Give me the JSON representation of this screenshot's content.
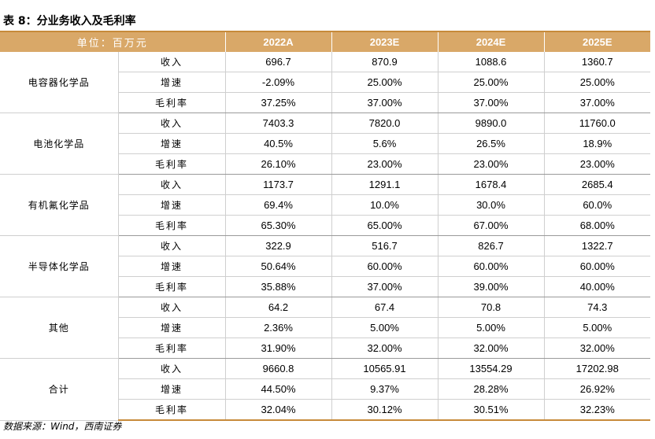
{
  "title": "表 8：分业务收入及毛利率",
  "header": {
    "unit": "单位：百万元",
    "years": [
      "2022A",
      "2023E",
      "2024E",
      "2025E"
    ]
  },
  "segments": [
    {
      "name": "电容器化学品",
      "rows": [
        {
          "metric": "收入",
          "values": [
            "696.7",
            "870.9",
            "1088.6",
            "1360.7"
          ]
        },
        {
          "metric": "增速",
          "values": [
            "-2.09%",
            "25.00%",
            "25.00%",
            "25.00%"
          ]
        },
        {
          "metric": "毛利率",
          "values": [
            "37.25%",
            "37.00%",
            "37.00%",
            "37.00%"
          ]
        }
      ]
    },
    {
      "name": "电池化学品",
      "rows": [
        {
          "metric": "收入",
          "values": [
            "7403.3",
            "7820.0",
            "9890.0",
            "11760.0"
          ]
        },
        {
          "metric": "增速",
          "values": [
            "40.5%",
            "5.6%",
            "26.5%",
            "18.9%"
          ]
        },
        {
          "metric": "毛利率",
          "values": [
            "26.10%",
            "23.00%",
            "23.00%",
            "23.00%"
          ]
        }
      ]
    },
    {
      "name": "有机氟化学品",
      "rows": [
        {
          "metric": "收入",
          "values": [
            "1173.7",
            "1291.1",
            "1678.4",
            "2685.4"
          ]
        },
        {
          "metric": "增速",
          "values": [
            "69.4%",
            "10.0%",
            "30.0%",
            "60.0%"
          ]
        },
        {
          "metric": "毛利率",
          "values": [
            "65.30%",
            "65.00%",
            "67.00%",
            "68.00%"
          ]
        }
      ]
    },
    {
      "name": "半导体化学品",
      "rows": [
        {
          "metric": "收入",
          "values": [
            "322.9",
            "516.7",
            "826.7",
            "1322.7"
          ]
        },
        {
          "metric": "增速",
          "values": [
            "50.64%",
            "60.00%",
            "60.00%",
            "60.00%"
          ]
        },
        {
          "metric": "毛利率",
          "values": [
            "35.88%",
            "37.00%",
            "39.00%",
            "40.00%"
          ]
        }
      ]
    },
    {
      "name": "其他",
      "rows": [
        {
          "metric": "收入",
          "values": [
            "64.2",
            "67.4",
            "70.8",
            "74.3"
          ]
        },
        {
          "metric": "增速",
          "values": [
            "2.36%",
            "5.00%",
            "5.00%",
            "5.00%"
          ]
        },
        {
          "metric": "毛利率",
          "values": [
            "31.90%",
            "32.00%",
            "32.00%",
            "32.00%"
          ]
        }
      ]
    },
    {
      "name": "合计",
      "rows": [
        {
          "metric": "收入",
          "values": [
            "9660.8",
            "10565.91",
            "13554.29",
            "17202.98"
          ]
        },
        {
          "metric": "增速",
          "values": [
            "44.50%",
            "9.37%",
            "28.28%",
            "26.92%"
          ]
        },
        {
          "metric": "毛利率",
          "values": [
            "32.04%",
            "30.12%",
            "30.51%",
            "32.23%"
          ]
        }
      ]
    }
  ],
  "source": "数据来源：Wind，西南证券",
  "colors": {
    "header_bg": "#d9a868",
    "accent_rule": "#c78a3a"
  }
}
